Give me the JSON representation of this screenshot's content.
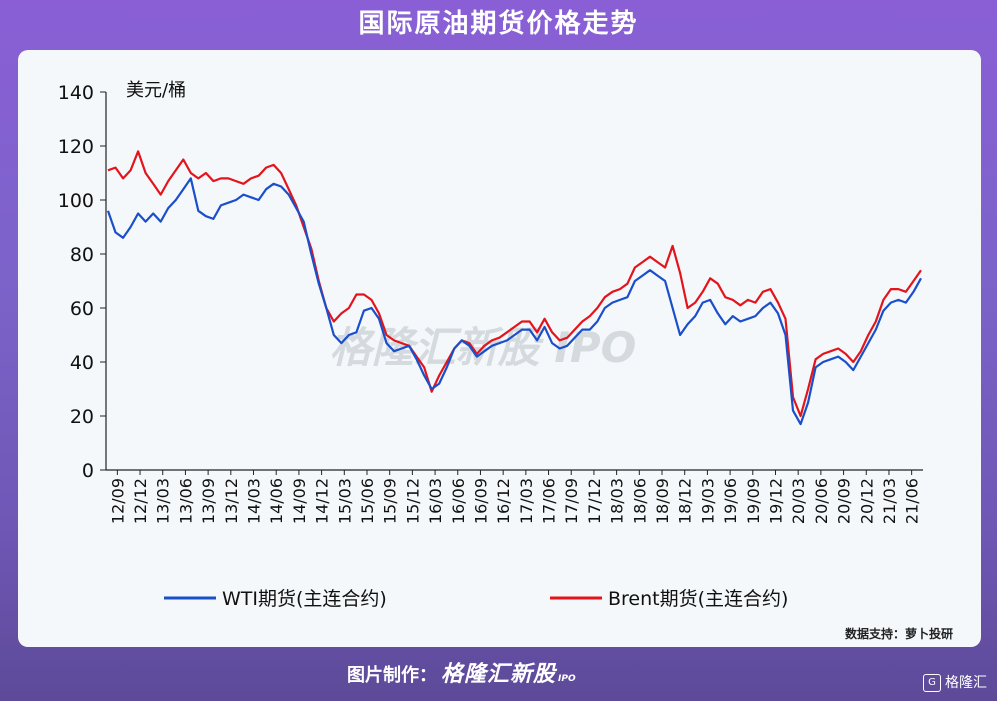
{
  "header": {
    "title": "国际原油期货价格走势"
  },
  "footer": {
    "made_by_label": "图片制作：",
    "brand": "格隆汇新股",
    "brand_sub": "IPO",
    "corner_logo": "格隆汇"
  },
  "chart_data": {
    "type": "line",
    "ylabel": "美元/桶",
    "ylim": [
      0,
      140
    ],
    "yticks": [
      0,
      20,
      40,
      60,
      80,
      100,
      120,
      140
    ],
    "x_tick_labels": [
      "12/09",
      "12/12",
      "13/03",
      "13/06",
      "13/09",
      "13/12",
      "14/03",
      "14/06",
      "14/09",
      "14/12",
      "15/03",
      "15/06",
      "15/09",
      "15/12",
      "16/03",
      "16/06",
      "16/09",
      "16/12",
      "17/03",
      "17/06",
      "17/09",
      "17/12",
      "18/03",
      "18/06",
      "18/09",
      "18/12",
      "19/03",
      "19/06",
      "19/09",
      "19/12",
      "20/03",
      "20/06",
      "20/09",
      "20/12",
      "21/03",
      "21/06"
    ],
    "grid": false,
    "legend_position": "bottom",
    "source_note": "数据支持：萝卜投研",
    "watermark": "格隆汇新股 IPO",
    "colors": {
      "WTI": "#1a4fc9",
      "Brent": "#e3141b"
    },
    "series": [
      {
        "name": "WTI期货(主连合约)",
        "values": [
          96,
          88,
          86,
          90,
          95,
          92,
          95,
          92,
          97,
          100,
          104,
          108,
          96,
          94,
          93,
          98,
          99,
          100,
          102,
          101,
          100,
          104,
          106,
          105,
          102,
          97,
          92,
          80,
          69,
          60,
          50,
          47,
          50,
          51,
          59,
          60,
          56,
          47,
          44,
          45,
          46,
          41,
          35,
          30,
          32,
          38,
          45,
          48,
          46,
          42,
          44,
          46,
          47,
          48,
          50,
          52,
          52,
          48,
          53,
          47,
          45,
          46,
          49,
          52,
          52,
          55,
          60,
          62,
          63,
          64,
          70,
          72,
          74,
          72,
          70,
          60,
          50,
          54,
          57,
          62,
          63,
          58,
          54,
          57,
          55,
          56,
          57,
          60,
          62,
          58,
          50,
          22,
          17,
          25,
          38,
          40,
          41,
          42,
          40,
          37,
          42,
          47,
          52,
          59,
          62,
          63,
          62,
          66,
          71
        ]
      },
      {
        "name": "Brent期货(主连合约)",
        "values": [
          111,
          112,
          108,
          111,
          118,
          110,
          106,
          102,
          107,
          111,
          115,
          110,
          108,
          110,
          107,
          108,
          108,
          107,
          106,
          108,
          109,
          112,
          113,
          110,
          104,
          98,
          90,
          82,
          70,
          60,
          55,
          58,
          60,
          65,
          65,
          63,
          58,
          50,
          48,
          47,
          46,
          42,
          38,
          29,
          35,
          40,
          45,
          48,
          47,
          43,
          46,
          48,
          49,
          51,
          53,
          55,
          55,
          51,
          56,
          51,
          48,
          49,
          52,
          55,
          57,
          60,
          64,
          66,
          67,
          69,
          75,
          77,
          79,
          77,
          75,
          83,
          73,
          60,
          62,
          66,
          71,
          69,
          64,
          63,
          61,
          63,
          62,
          66,
          67,
          62,
          56,
          27,
          20,
          30,
          41,
          43,
          44,
          45,
          43,
          40,
          44,
          50,
          55,
          63,
          67,
          67,
          66,
          70,
          74
        ]
      }
    ]
  }
}
